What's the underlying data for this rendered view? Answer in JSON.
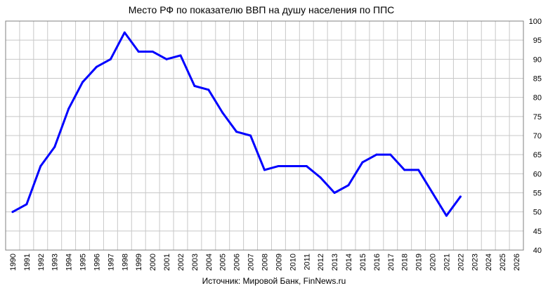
{
  "chart_data": {
    "type": "line",
    "title": "Место РФ по показателю ВВП на душу населения по ППС",
    "source": "Источник: Мировой Банк, FinNews.ru",
    "xlabel": "",
    "ylabel": "",
    "ylim": [
      40,
      100
    ],
    "y_ticks": [
      40,
      45,
      50,
      55,
      60,
      65,
      70,
      75,
      80,
      85,
      90,
      95,
      100
    ],
    "y_axis_side": "right",
    "grid": true,
    "legend": "none",
    "categories": [
      "1990",
      "1991",
      "1992",
      "1993",
      "1994",
      "1995",
      "1996",
      "1997",
      "1998",
      "1999",
      "2000",
      "2001",
      "2002",
      "2003",
      "2004",
      "2005",
      "2006",
      "2007",
      "2008",
      "2009",
      "2010",
      "2011",
      "2012",
      "2013",
      "2014",
      "2015",
      "2016",
      "2017",
      "2018",
      "2019",
      "2020",
      "2021",
      "2022",
      "2023",
      "2024",
      "2025",
      "2026"
    ],
    "series": [
      {
        "color": "#0000ff",
        "values": [
          50,
          52,
          62,
          67,
          77,
          84,
          88,
          90,
          97,
          92,
          92,
          90,
          91,
          83,
          82,
          76,
          71,
          70,
          61,
          62,
          62,
          62,
          59,
          55,
          57,
          63,
          65,
          65,
          61,
          61,
          55,
          49,
          54,
          null,
          null,
          null,
          null
        ]
      }
    ]
  }
}
